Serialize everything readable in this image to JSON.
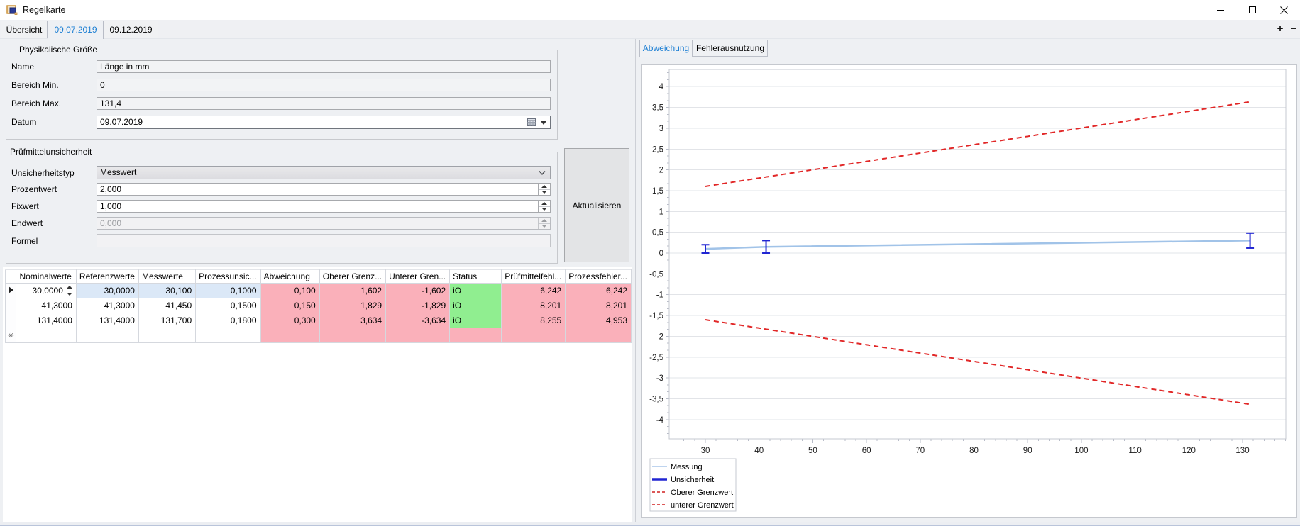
{
  "window": {
    "title": "Regelkarte",
    "controls": {
      "minimize": "minimize",
      "maximize": "maximize",
      "close": "close"
    }
  },
  "tabs": {
    "items": [
      {
        "label": "Übersicht",
        "active": false
      },
      {
        "label": "09.07.2019",
        "active": true
      },
      {
        "label": "09.12.2019",
        "active": false
      }
    ],
    "add_label": "+",
    "remove_label": "−"
  },
  "form": {
    "group1": {
      "title": "Physikalische Größe",
      "fields": [
        {
          "label": "Name",
          "value": "Länge in mm"
        },
        {
          "label": "Bereich Min.",
          "value": "0"
        },
        {
          "label": "Bereich Max.",
          "value": "131,4"
        },
        {
          "label": "Datum",
          "value": "09.07.2019"
        }
      ]
    },
    "group2": {
      "title": "Prüfmittelunsicherheit",
      "fields": [
        {
          "label": "Unsicherheitstyp",
          "value": "Messwert"
        },
        {
          "label": "Prozentwert",
          "value": "2,000"
        },
        {
          "label": "Fixwert",
          "value": "1,000"
        },
        {
          "label": "Endwert",
          "value": "0,000"
        },
        {
          "label": "Formel",
          "value": ""
        }
      ]
    },
    "update_button": "Aktualisieren"
  },
  "grid": {
    "columns": [
      "Nominalwerte",
      "Referenzwerte",
      "Messwerte",
      "Prozessunsic...",
      "Abweichung",
      "Oberer Grenz...",
      "Unterer Gren...",
      "Status",
      "Prüfmittelfehl...",
      "Prozessfehler..."
    ],
    "rows": [
      [
        "30,0000",
        "30,0000",
        "30,100",
        "0,1000",
        "0,100",
        "1,602",
        "-1,602",
        "iO",
        "6,242",
        "6,242"
      ],
      [
        "41,3000",
        "41,3000",
        "41,450",
        "0,1500",
        "0,150",
        "1,829",
        "-1,829",
        "iO",
        "8,201",
        "8,201"
      ],
      [
        "131,4000",
        "131,4000",
        "131,700",
        "0,1800",
        "0,300",
        "3,634",
        "-3,634",
        "iO",
        "8,255",
        "4,953"
      ]
    ],
    "new_row_marker": "✳",
    "colors": {
      "pink": "#fab0ba",
      "green": "#90ee90",
      "selection": "#dbe8f7"
    }
  },
  "chart_panel": {
    "tabs": [
      {
        "label": "Abweichung",
        "active": true
      },
      {
        "label": "Fehlerausnutzung",
        "active": false
      }
    ]
  },
  "chart_data": {
    "type": "line",
    "title": "",
    "xlabel": "",
    "ylabel": "",
    "x_ticks": [
      30,
      40,
      50,
      60,
      70,
      80,
      90,
      100,
      110,
      120,
      130
    ],
    "x_minor_step": 2,
    "ylim_labels": [
      -4,
      4
    ],
    "y_major_step": 0.5,
    "grid": true,
    "legend_position": "bottom-left",
    "series": [
      {
        "name": "Messung",
        "type": "line",
        "color": "#a1c3e8",
        "width": 2.5,
        "x": [
          30,
          41.3,
          131.4
        ],
        "y": [
          0.1,
          0.15,
          0.3
        ]
      },
      {
        "name": "Unsicherheit",
        "type": "errorbar",
        "color": "#2025d2",
        "points": [
          {
            "x": 30,
            "y": 0.1,
            "err": 0.1
          },
          {
            "x": 41.3,
            "y": 0.15,
            "err": 0.15
          },
          {
            "x": 131.4,
            "y": 0.3,
            "err": 0.18
          }
        ]
      },
      {
        "name": "Oberer Grenzwert",
        "type": "dashed",
        "color": "#e12727",
        "width": 2,
        "x": [
          30,
          131.4
        ],
        "y": [
          1.602,
          3.634
        ]
      },
      {
        "name": "unterer Grenzwert",
        "type": "dashed",
        "color": "#e12727",
        "width": 2,
        "x": [
          30,
          131.4
        ],
        "y": [
          -1.602,
          -3.634
        ]
      }
    ],
    "legend": [
      "Messung",
      "Unsicherheit",
      "Oberer Grenzwert",
      "unterer Grenzwert"
    ]
  }
}
